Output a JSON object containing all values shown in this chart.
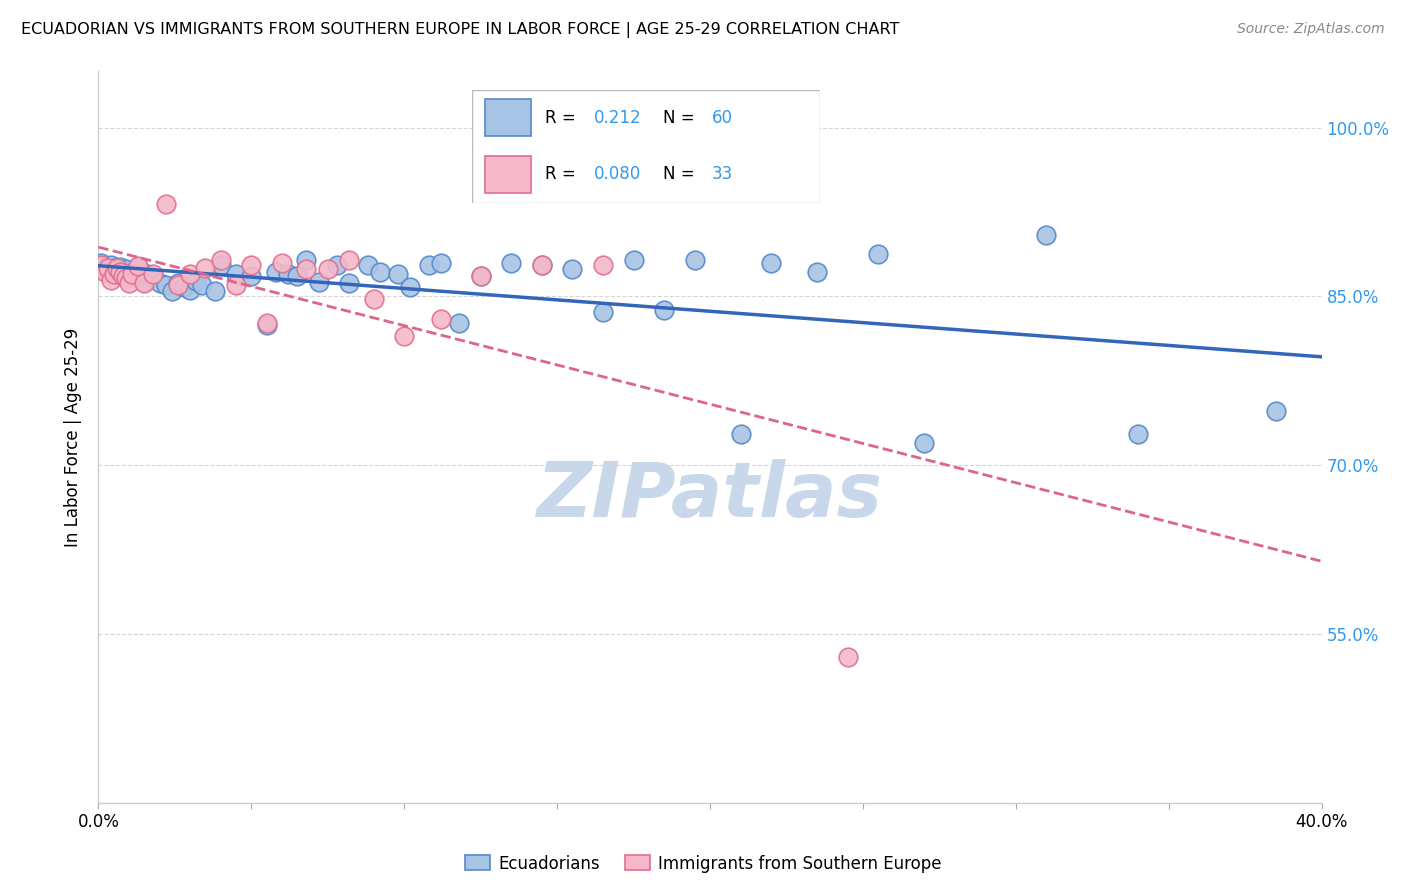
{
  "title": "ECUADORIAN VS IMMIGRANTS FROM SOUTHERN EUROPE IN LABOR FORCE | AGE 25-29 CORRELATION CHART",
  "source": "Source: ZipAtlas.com",
  "ylabel": "In Labor Force | Age 25-29",
  "xlim": [
    0.0,
    0.4
  ],
  "ylim": [
    0.4,
    1.05
  ],
  "R_blue": 0.212,
  "N_blue": 60,
  "R_pink": 0.08,
  "N_pink": 33,
  "blue_scatter_color": "#a8c4e5",
  "blue_edge_color": "#5588cc",
  "pink_scatter_color": "#f5b8c8",
  "pink_edge_color": "#e07090",
  "blue_line_color": "#3366bb",
  "pink_line_color": "#dd6688",
  "watermark_color": "#c8d8ea",
  "background_color": "#ffffff",
  "grid_color": "#cccccc",
  "blue_x": [
    0.001,
    0.002,
    0.003,
    0.004,
    0.005,
    0.006,
    0.007,
    0.008,
    0.009,
    0.01,
    0.011,
    0.012,
    0.013,
    0.014,
    0.015,
    0.016,
    0.018,
    0.02,
    0.022,
    0.024,
    0.026,
    0.028,
    0.03,
    0.032,
    0.034,
    0.038,
    0.04,
    0.045,
    0.05,
    0.055,
    0.058,
    0.062,
    0.065,
    0.068,
    0.072,
    0.078,
    0.082,
    0.088,
    0.092,
    0.098,
    0.102,
    0.108,
    0.112,
    0.118,
    0.125,
    0.135,
    0.145,
    0.155,
    0.165,
    0.175,
    0.185,
    0.195,
    0.21,
    0.22,
    0.235,
    0.255,
    0.27,
    0.31,
    0.34,
    0.385
  ],
  "blue_y": [
    0.88,
    0.875,
    0.872,
    0.878,
    0.875,
    0.87,
    0.876,
    0.872,
    0.874,
    0.87,
    0.868,
    0.873,
    0.876,
    0.869,
    0.863,
    0.87,
    0.866,
    0.862,
    0.86,
    0.855,
    0.862,
    0.858,
    0.856,
    0.864,
    0.86,
    0.855,
    0.878,
    0.87,
    0.868,
    0.825,
    0.872,
    0.87,
    0.868,
    0.882,
    0.863,
    0.878,
    0.862,
    0.878,
    0.872,
    0.87,
    0.858,
    0.878,
    0.88,
    0.826,
    0.868,
    0.88,
    0.878,
    0.874,
    0.836,
    0.882,
    0.838,
    0.882,
    0.728,
    0.88,
    0.872,
    0.888,
    0.72,
    0.905,
    0.728,
    0.748
  ],
  "pink_x": [
    0.001,
    0.002,
    0.003,
    0.004,
    0.005,
    0.006,
    0.007,
    0.008,
    0.009,
    0.01,
    0.011,
    0.013,
    0.015,
    0.018,
    0.022,
    0.026,
    0.03,
    0.035,
    0.04,
    0.045,
    0.05,
    0.055,
    0.06,
    0.068,
    0.075,
    0.082,
    0.09,
    0.1,
    0.112,
    0.125,
    0.145,
    0.165,
    0.245
  ],
  "pink_y": [
    0.878,
    0.872,
    0.875,
    0.865,
    0.87,
    0.875,
    0.872,
    0.868,
    0.866,
    0.862,
    0.87,
    0.877,
    0.862,
    0.87,
    0.932,
    0.86,
    0.87,
    0.875,
    0.882,
    0.86,
    0.878,
    0.826,
    0.88,
    0.874,
    0.874,
    0.882,
    0.848,
    0.815,
    0.83,
    0.868,
    0.878,
    0.878,
    0.53
  ]
}
